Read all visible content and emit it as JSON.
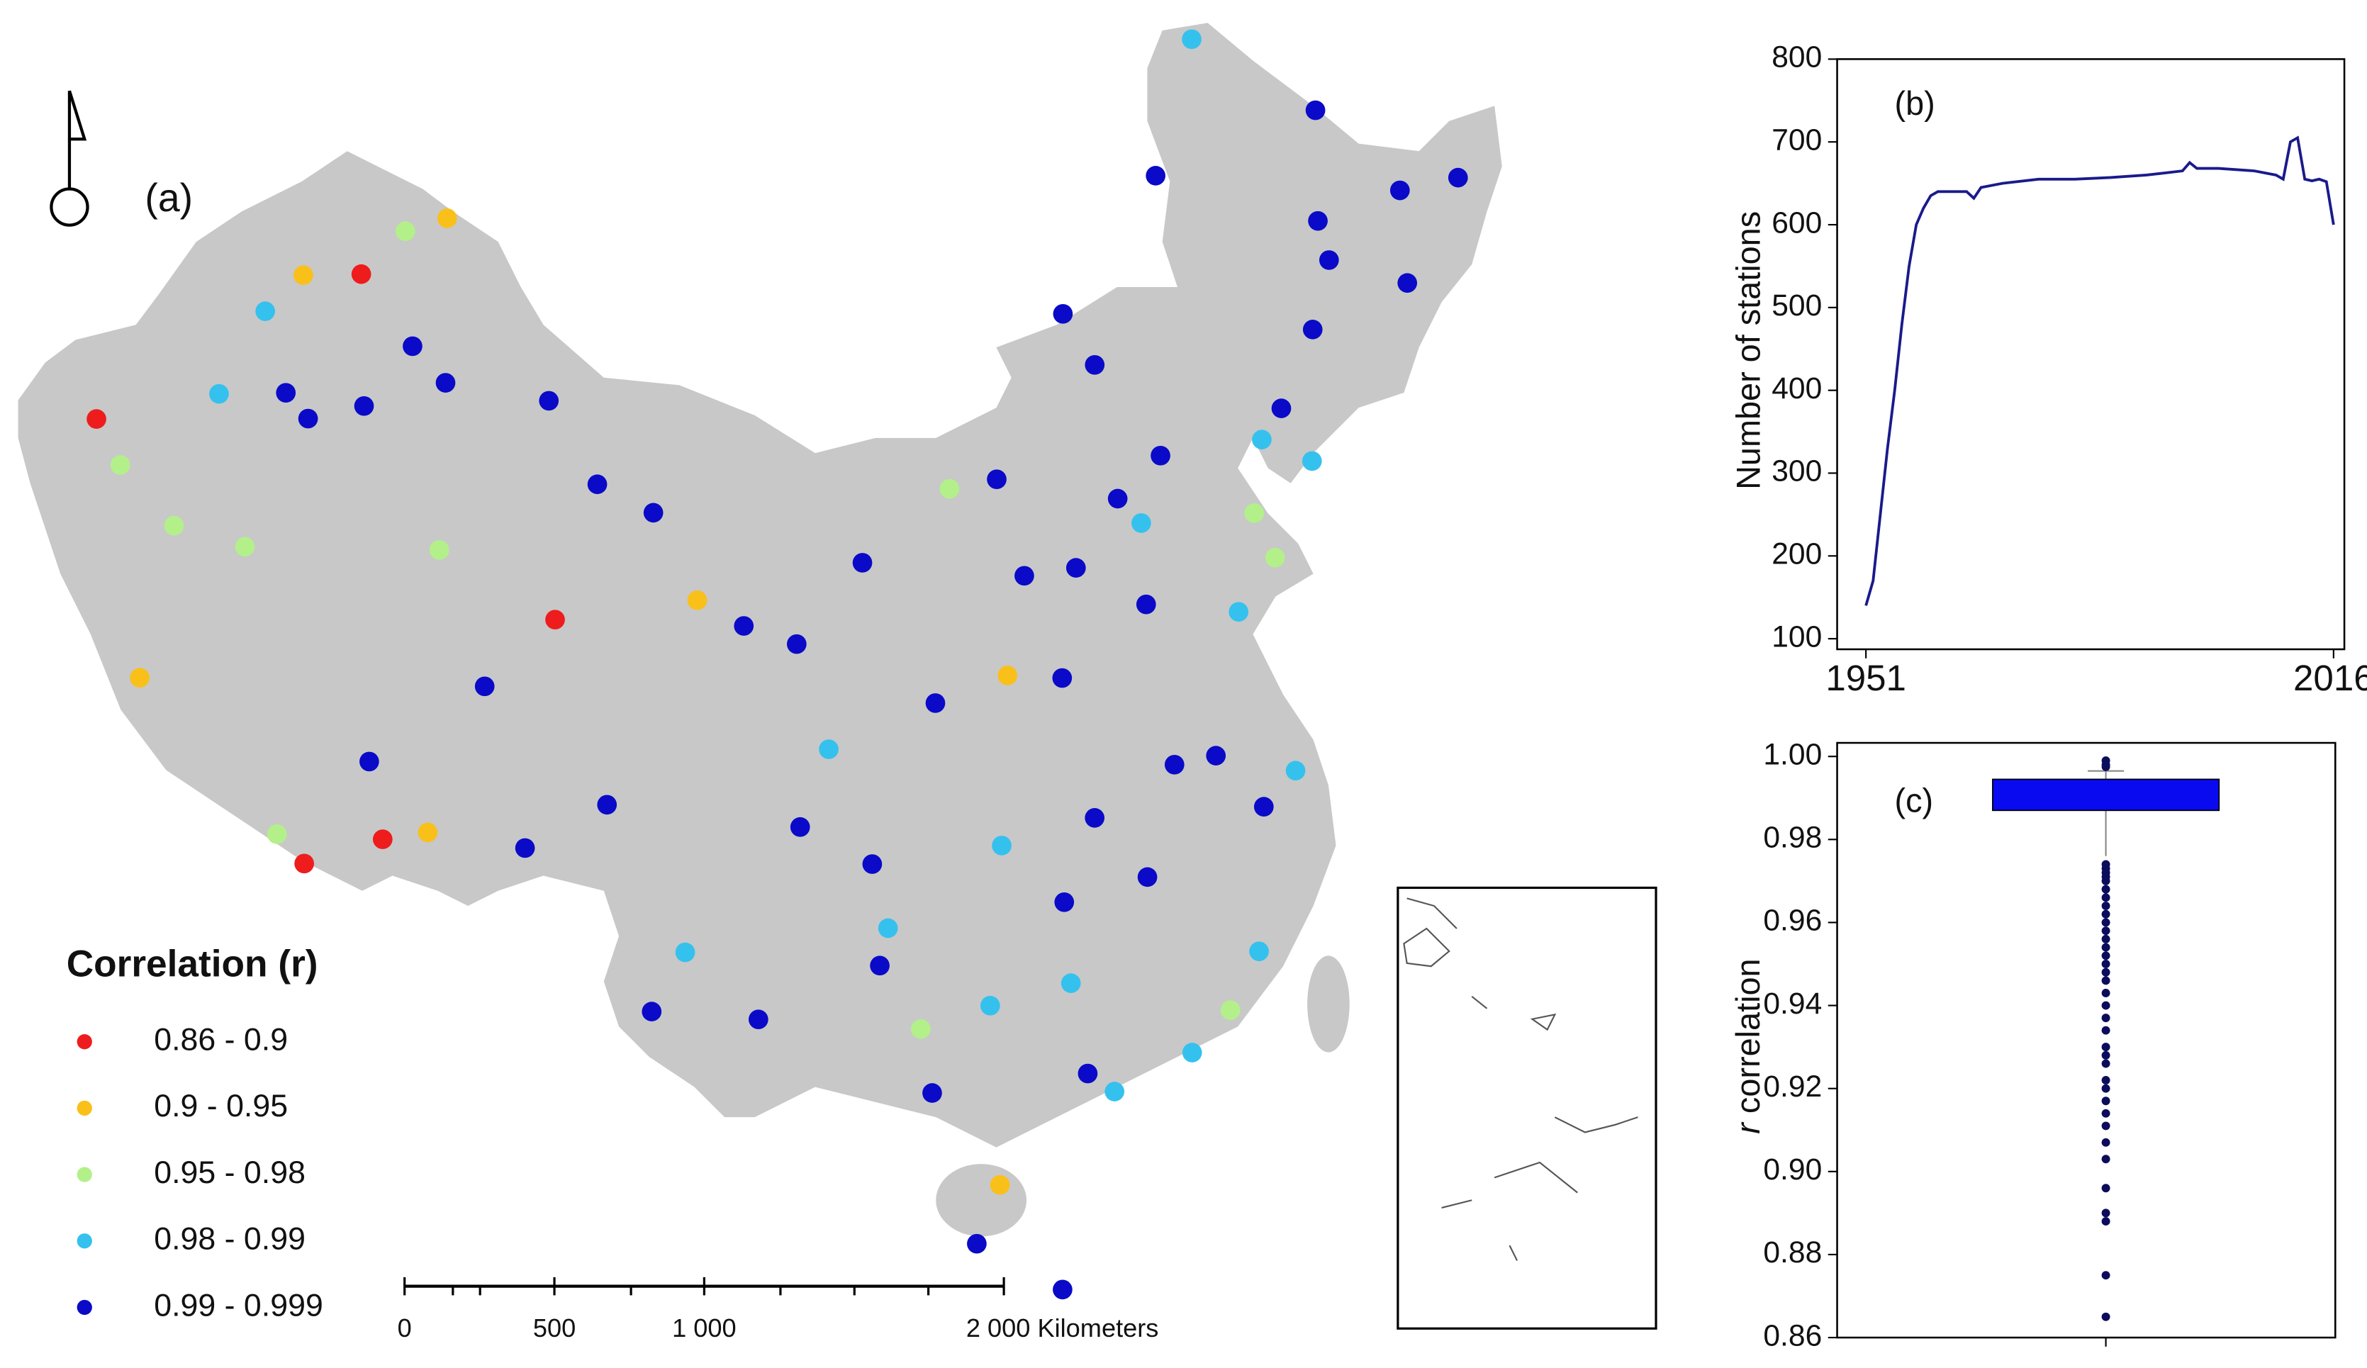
{
  "chart_data": [
    {
      "type": "map",
      "panel_label": "(a)",
      "legend_title": "Correlation (r)",
      "series": [
        {
          "name": "0.86 - 0.9",
          "color": "#ee1c1c",
          "lon": [
            75.9,
            94.7,
            89.6,
            87.1,
            84.9
          ],
          "lat": [
            39.5,
            36.4,
            29.3,
            28.2,
            45.6
          ]
        },
        {
          "name": "0.9  - 0.95",
          "color": "#f9c01a",
          "lon": [
            88.1,
            82.5,
            91.1,
            80.1,
            100.0,
            110.3,
            111.6
          ],
          "lat": [
            47.7,
            45.2,
            29.7,
            32.5,
            37.3,
            20.0,
            35.0
          ]
        },
        {
          "name": "0.95 - 0.98",
          "color": "#b3f08a",
          "lon": [
            77.3,
            79.9,
            82.7,
            86.4,
            90.0,
            86.0,
            118.1,
            122.1,
            121.6,
            109.8,
            108.0
          ],
          "lat": [
            38.4,
            37.1,
            37.0,
            47.1,
            38.0,
            28.9,
            24.5,
            37.5,
            38.9,
            40.6,
            24.7
          ]
        },
        {
          "name": "0.98 - 0.99",
          "color": "#35c1ee",
          "lon": [
            80.3,
            81.3,
            100.2,
            110.3,
            114.1,
            117.2,
            121.5,
            119.3,
            120.4,
            122.5,
            124.2,
            122.4,
            107.0,
            105.0,
            111.0,
            113.0,
            116.7
          ],
          "lat": [
            41.2,
            43.9,
            26.9,
            25.3,
            22.5,
            39.1,
            31.2,
            26.1,
            36.1,
            53.0,
            40.1,
            41.0,
            27.7,
            33.0,
            30.0,
            25.8,
            23.4
          ]
        },
        {
          "name": "0.99  - 0.999",
          "color": "#0a0ac8",
          "lon": [
            82.9,
            84.0,
            86.1,
            87.6,
            89.2,
            93.5,
            95.8,
            98.1,
            92.4,
            88.7,
            94.5,
            97.2,
            101.8,
            103.8,
            104.0,
            106.5,
            102.7,
            99.2,
            106.7,
            108.3,
            113.3,
            109.5,
            112.0,
            116.4,
            120.2,
            118.8,
            117.3,
            114.3,
            113.0,
            115.9,
            117.0,
            113.6,
            112.5,
            111.7,
            108.9,
            106.3,
            116.1,
            115.0,
            119.8,
            126.6,
            125.3,
            123.4,
            129.6,
            127.5,
            130.3,
            132.9,
            126.5,
            118.3,
            114.5
          ],
          "lat": [
            41.7,
            41.1,
            41.8,
            43.8,
            42.9,
            42.8,
            40.5,
            39.8,
            34.2,
            31.5,
            29.6,
            31.1,
            36.6,
            36.1,
            30.7,
            29.6,
            25.0,
            25.1,
            26.6,
            22.8,
            23.1,
            18.3,
            16.8,
            39.9,
            30.3,
            32.0,
            31.9,
            30.6,
            28.2,
            28.7,
            36.7,
            34.8,
            37.9,
            40.8,
            34.3,
            38.5,
            43.9,
            45.5,
            49.2,
            45.8,
            43.9,
            41.8,
            44.6,
            50.2,
            47.3,
            47.2,
            47.0,
            41.0,
            38.0
          ]
        }
      ],
      "scale_ticks": [
        0,
        500,
        {
          "value": 1000,
          "label": "1 000"
        },
        {
          "value": 2000,
          "label": "2 000 Kilometers"
        }
      ]
    },
    {
      "type": "line",
      "panel_label": "(b)",
      "y_label": "Number of stations",
      "color": "#1a1a8c",
      "x": [
        1951,
        1952,
        1953,
        1954,
        1955,
        1956,
        1957,
        1958,
        1959,
        1960,
        1961,
        1963,
        1965,
        1966,
        1967,
        1970,
        1975,
        1980,
        1985,
        1990,
        1995,
        1996,
        1997,
        2000,
        2005,
        2008,
        2009,
        2010,
        2011,
        2012,
        2013,
        2014,
        2015,
        2016
      ],
      "values": [
        140,
        170,
        250,
        330,
        400,
        480,
        550,
        600,
        620,
        635,
        640,
        640,
        640,
        632,
        645,
        650,
        655,
        655,
        657,
        660,
        665,
        675,
        668,
        668,
        665,
        660,
        655,
        700,
        705,
        655,
        653,
        655,
        652,
        600
      ],
      "xlim": [
        1947,
        2017.5
      ],
      "xticks": [
        1951,
        2016
      ],
      "ylim": [
        100,
        800
      ],
      "yticks": [
        100,
        200,
        300,
        400,
        500,
        600,
        700,
        800
      ]
    },
    {
      "type": "box",
      "panel_label": "(c)",
      "y_label_var": "r",
      "y_label": "correlation",
      "color": "#0a0af0",
      "point_color": "#0c0c5c",
      "q1": 0.987,
      "q3": 0.9945,
      "whisker_low": 0.976,
      "whisker_high": 0.9965,
      "outliers": [
        0.999,
        0.998,
        0.9975,
        0.974,
        0.973,
        0.972,
        0.971,
        0.97,
        0.968,
        0.966,
        0.964,
        0.962,
        0.96,
        0.958,
        0.956,
        0.954,
        0.952,
        0.95,
        0.948,
        0.946,
        0.943,
        0.94,
        0.937,
        0.934,
        0.93,
        0.928,
        0.926,
        0.922,
        0.92,
        0.917,
        0.914,
        0.911,
        0.907,
        0.903,
        0.896,
        0.89,
        0.888,
        0.875,
        0.865
      ],
      "ylim": [
        0.86,
        1.0
      ],
      "yticks": [
        0.86,
        0.88,
        {
          "value": 0.9,
          "label": "0.90"
        },
        0.92,
        0.94,
        0.96,
        0.98,
        {
          "value": 1.0,
          "label": "1.00"
        }
      ]
    }
  ]
}
